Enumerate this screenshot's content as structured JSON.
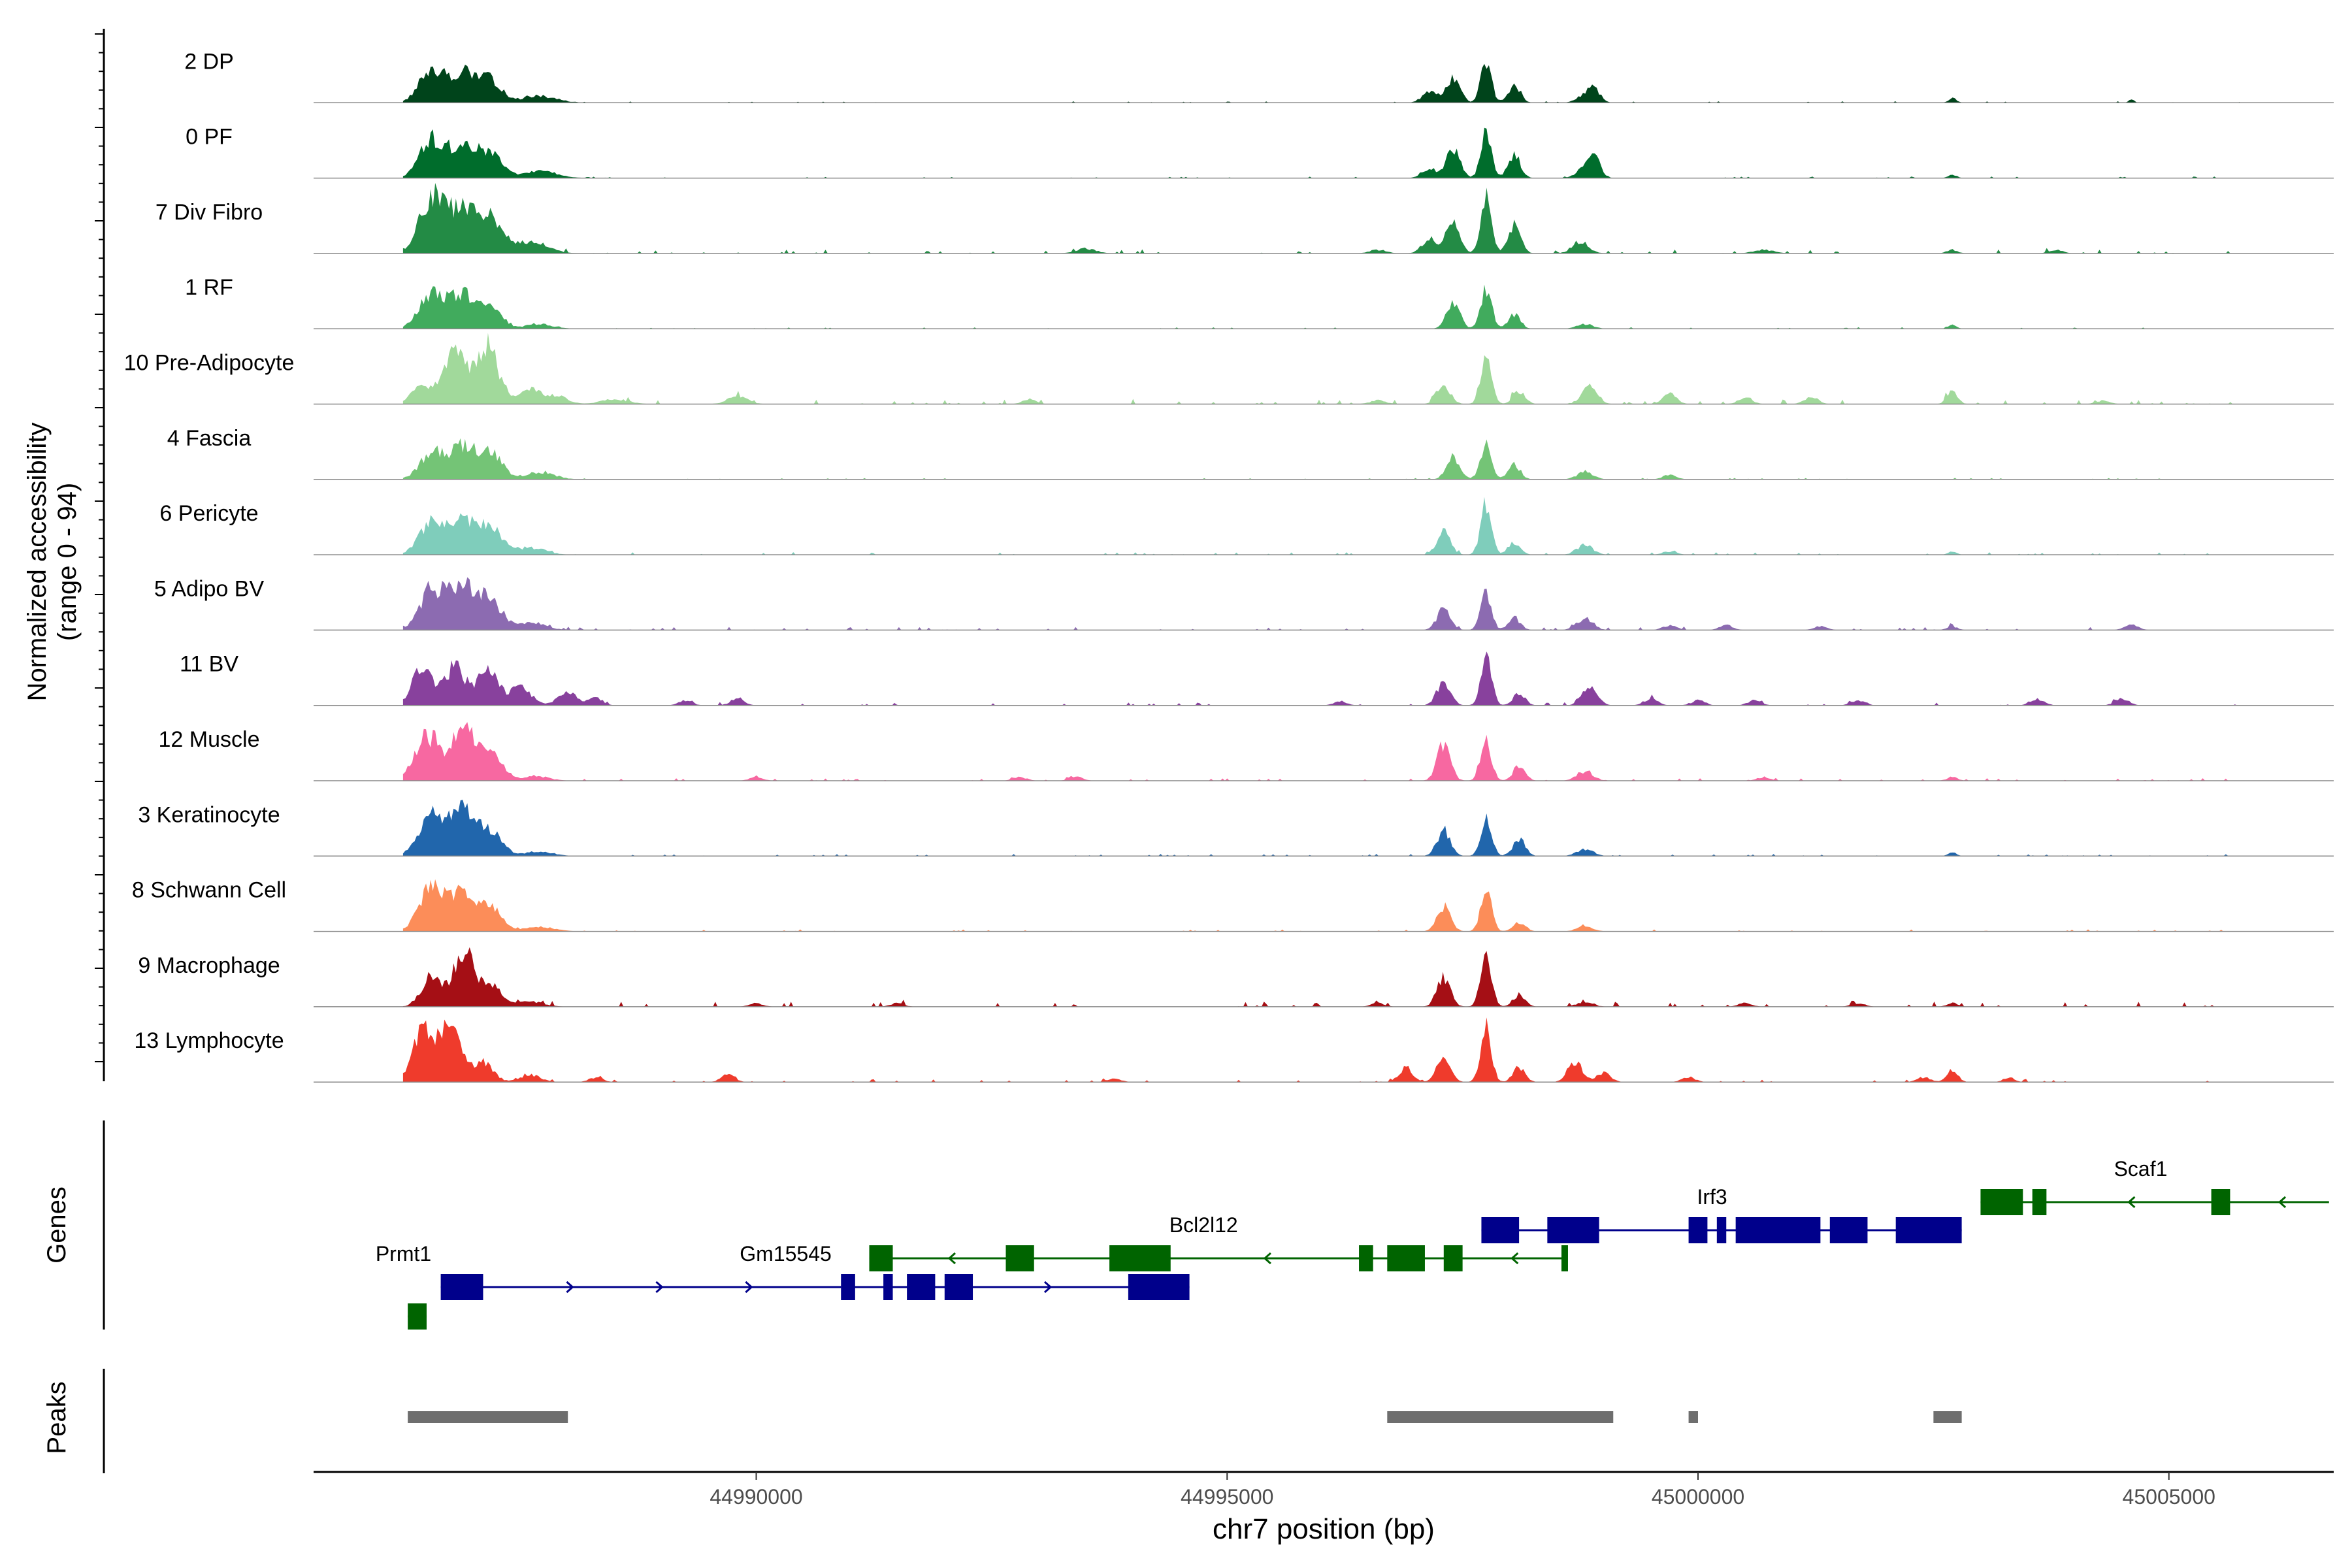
{
  "chart_data": {
    "type": "area",
    "title": "",
    "chromosome": "chr7",
    "xlabel": "chr7 position (bp)",
    "xlim": [
      44985300,
      45006750
    ],
    "x_ticks": [
      44990000,
      44995000,
      45000000,
      45005000
    ],
    "x_tick_labels": [
      "44990000",
      "44995000",
      "45000000",
      "45005000"
    ],
    "ylabel_line1": "Normalized accessibility",
    "ylabel_line2": "(range 0 - 94)",
    "ylim": [
      0,
      94
    ],
    "tracks": [
      {
        "name": "2 DP",
        "color": "#00441b",
        "scale": 0.95,
        "noise": 0.3,
        "peaks": [
          [
            44986550,
            14,
            180
          ],
          [
            44986900,
            13,
            220
          ],
          [
            44987200,
            8,
            160
          ],
          [
            44987700,
            3,
            250
          ],
          [
            44997150,
            5,
            110
          ],
          [
            44997400,
            11,
            100
          ],
          [
            44997750,
            17,
            80
          ],
          [
            44998050,
            8,
            90
          ],
          [
            44998800,
            3,
            120
          ],
          [
            44998900,
            5,
            90
          ],
          [
            45002700,
            2,
            60
          ],
          [
            45004600,
            1.5,
            40
          ]
        ]
      },
      {
        "name": "0 PF",
        "color": "#006d2c",
        "scale": 1.0,
        "noise": 0.3,
        "peaks": [
          [
            44986550,
            15,
            180
          ],
          [
            44986900,
            14,
            220
          ],
          [
            44987200,
            8,
            160
          ],
          [
            44987700,
            3,
            250
          ],
          [
            44997150,
            4,
            110
          ],
          [
            44997400,
            13,
            100
          ],
          [
            44997750,
            18,
            80
          ],
          [
            44998050,
            10,
            90
          ],
          [
            44998800,
            4,
            120
          ],
          [
            44998900,
            7,
            90
          ],
          [
            45002700,
            1.5,
            60
          ]
        ]
      },
      {
        "name": "7 Div Fibro",
        "color": "#238b45",
        "scale": 1.0,
        "noise": 0.8,
        "peaks": [
          [
            44986550,
            22,
            180
          ],
          [
            44986900,
            20,
            220
          ],
          [
            44987200,
            12,
            160
          ],
          [
            44987600,
            5,
            250
          ],
          [
            44993500,
            2,
            150
          ],
          [
            44996600,
            1.5,
            120
          ],
          [
            44997150,
            6,
            110
          ],
          [
            44997400,
            12,
            100
          ],
          [
            44997750,
            22,
            80
          ],
          [
            44998050,
            12,
            90
          ],
          [
            44998750,
            5,
            120
          ],
          [
            45000700,
            1.5,
            150
          ],
          [
            45002700,
            1.5,
            80
          ],
          [
            45003800,
            1.5,
            100
          ]
        ]
      },
      {
        "name": "1 RF",
        "color": "#41ab5d",
        "scale": 1.0,
        "noise": 0.3,
        "peaks": [
          [
            44986550,
            14,
            180
          ],
          [
            44986900,
            14,
            220
          ],
          [
            44987200,
            7,
            160
          ],
          [
            44987700,
            2,
            200
          ],
          [
            44997400,
            11,
            100
          ],
          [
            44997750,
            17,
            80
          ],
          [
            44998050,
            6,
            90
          ],
          [
            44998800,
            2,
            120
          ],
          [
            45002700,
            1.5,
            60
          ]
        ]
      },
      {
        "name": "10 Pre-Adipocyte",
        "color": "#a1d99b",
        "scale": 1.0,
        "noise": 1.0,
        "peaks": [
          [
            44986450,
            8,
            150
          ],
          [
            44986800,
            20,
            180
          ],
          [
            44987150,
            24,
            160
          ],
          [
            44987600,
            6,
            180
          ],
          [
            44987900,
            3,
            150
          ],
          [
            44988500,
            2,
            200
          ],
          [
            44989800,
            3,
            150
          ],
          [
            44992900,
            2,
            100
          ],
          [
            44996600,
            1.5,
            120
          ],
          [
            44997300,
            8,
            100
          ],
          [
            44997750,
            19,
            80
          ],
          [
            44998100,
            5,
            90
          ],
          [
            44998850,
            8,
            110
          ],
          [
            44999700,
            4,
            100
          ],
          [
            45000500,
            3,
            100
          ],
          [
            45001200,
            3,
            100
          ],
          [
            45002700,
            5,
            80
          ],
          [
            45004300,
            1.5,
            100
          ]
        ]
      },
      {
        "name": "4 Fascia",
        "color": "#74c476",
        "scale": 1.0,
        "noise": 0.3,
        "peaks": [
          [
            44986550,
            10,
            180
          ],
          [
            44986900,
            14,
            220
          ],
          [
            44987200,
            9,
            160
          ],
          [
            44987700,
            3,
            220
          ],
          [
            44997400,
            9,
            100
          ],
          [
            44997750,
            15,
            80
          ],
          [
            44998050,
            6,
            90
          ],
          [
            44998800,
            3,
            120
          ],
          [
            44999700,
            2,
            100
          ]
        ]
      },
      {
        "name": "6 Pericyte",
        "color": "#7fcdbb",
        "scale": 1.0,
        "noise": 0.5,
        "peaks": [
          [
            44986550,
            13,
            180
          ],
          [
            44986900,
            14,
            220
          ],
          [
            44987200,
            9,
            160
          ],
          [
            44987600,
            3,
            220
          ],
          [
            44997300,
            10,
            100
          ],
          [
            44997750,
            22,
            80
          ],
          [
            44998050,
            5,
            90
          ],
          [
            44998800,
            4,
            120
          ],
          [
            44999700,
            1.5,
            100
          ],
          [
            45002700,
            1.5,
            60
          ]
        ]
      },
      {
        "name": "5 Adipo BV",
        "color": "#8c6bb1",
        "scale": 1.0,
        "noise": 0.6,
        "peaks": [
          [
            44986550,
            16,
            180
          ],
          [
            44986900,
            18,
            220
          ],
          [
            44987200,
            10,
            160
          ],
          [
            44987600,
            3,
            220
          ],
          [
            44997300,
            9,
            100
          ],
          [
            44997750,
            15,
            80
          ],
          [
            44998050,
            5,
            90
          ],
          [
            44998800,
            5,
            120
          ],
          [
            44999700,
            2,
            100
          ],
          [
            45000300,
            2,
            100
          ],
          [
            45001300,
            1.5,
            100
          ],
          [
            45002700,
            1.5,
            80
          ],
          [
            45004600,
            2.5,
            100
          ]
        ]
      },
      {
        "name": "11 BV",
        "color": "#88419d",
        "scale": 1.0,
        "noise": 0.6,
        "peaks": [
          [
            44986450,
            15,
            150
          ],
          [
            44986800,
            16,
            160
          ],
          [
            44987150,
            16,
            150
          ],
          [
            44987500,
            8,
            150
          ],
          [
            44988000,
            5,
            150
          ],
          [
            44988300,
            3,
            100
          ],
          [
            44989250,
            2,
            100
          ],
          [
            44989800,
            3,
            100
          ],
          [
            44996200,
            1.5,
            100
          ],
          [
            44997300,
            10,
            100
          ],
          [
            44997750,
            20,
            80
          ],
          [
            44998100,
            5,
            90
          ],
          [
            44998850,
            8,
            110
          ],
          [
            44999500,
            3,
            100
          ],
          [
            45000000,
            2,
            100
          ],
          [
            45000600,
            2,
            100
          ],
          [
            45001700,
            2,
            100
          ],
          [
            45003600,
            2.5,
            100
          ],
          [
            45004500,
            3,
            100
          ]
        ]
      },
      {
        "name": "12 Muscle",
        "color": "#f768a1",
        "scale": 1.0,
        "noise": 0.5,
        "peaks": [
          [
            44986500,
            18,
            180
          ],
          [
            44986900,
            22,
            200
          ],
          [
            44987200,
            10,
            150
          ],
          [
            44987650,
            2,
            200
          ],
          [
            44990000,
            1.5,
            100
          ],
          [
            44992800,
            1.5,
            100
          ],
          [
            44993400,
            1.5,
            100
          ],
          [
            44997300,
            14,
            100
          ],
          [
            44997750,
            17,
            80
          ],
          [
            44998100,
            6,
            90
          ],
          [
            44998800,
            4,
            120
          ],
          [
            45000700,
            1.5,
            100
          ],
          [
            45002700,
            1.5,
            80
          ]
        ]
      },
      {
        "name": "3 Keratinocyte",
        "color": "#2166ac",
        "scale": 1.0,
        "noise": 0.4,
        "peaks": [
          [
            44986550,
            16,
            180
          ],
          [
            44986900,
            20,
            200
          ],
          [
            44987200,
            9,
            160
          ],
          [
            44987700,
            2,
            200
          ],
          [
            44997300,
            11,
            100
          ],
          [
            44997750,
            16,
            80
          ],
          [
            44998100,
            7,
            90
          ],
          [
            44998800,
            3,
            120
          ],
          [
            45002700,
            1.5,
            60
          ]
        ]
      },
      {
        "name": "8 Schwann Cell",
        "color": "#fc8d59",
        "scale": 1.0,
        "noise": 0.4,
        "peaks": [
          [
            44986550,
            18,
            180
          ],
          [
            44986900,
            16,
            200
          ],
          [
            44987200,
            8,
            160
          ],
          [
            44987700,
            2,
            220
          ],
          [
            44997300,
            10,
            100
          ],
          [
            44997750,
            18,
            80
          ],
          [
            44998100,
            4,
            90
          ],
          [
            44998800,
            2,
            120
          ]
        ]
      },
      {
        "name": "9 Macrophage",
        "color": "#a50f15",
        "scale": 1.0,
        "noise": 1.0,
        "peaks": [
          [
            44986550,
            12,
            150
          ],
          [
            44986900,
            22,
            170
          ],
          [
            44987200,
            8,
            150
          ],
          [
            44987600,
            2,
            200
          ],
          [
            44990000,
            1.5,
            100
          ],
          [
            44991500,
            1.5,
            100
          ],
          [
            44996600,
            1.5,
            100
          ],
          [
            44997300,
            12,
            100
          ],
          [
            44997750,
            21,
            80
          ],
          [
            44998100,
            5,
            90
          ],
          [
            44998800,
            2,
            120
          ],
          [
            45000500,
            1.5,
            100
          ],
          [
            45001700,
            1.5,
            100
          ],
          [
            45002700,
            1.5,
            80
          ]
        ]
      },
      {
        "name": "13 Lymphocyte",
        "color": "#ef3b2c",
        "scale": 1.0,
        "noise": 0.6,
        "peaks": [
          [
            44986450,
            20,
            150
          ],
          [
            44986750,
            23,
            170
          ],
          [
            44987100,
            8,
            150
          ],
          [
            44987600,
            3,
            150
          ],
          [
            44988300,
            2,
            100
          ],
          [
            44989700,
            3,
            100
          ],
          [
            44993800,
            1.5,
            100
          ],
          [
            44996900,
            6,
            100
          ],
          [
            44997300,
            11,
            100
          ],
          [
            44997750,
            23,
            80
          ],
          [
            44998100,
            6,
            90
          ],
          [
            44998700,
            8,
            110
          ],
          [
            44999000,
            4,
            100
          ],
          [
            44999900,
            2,
            100
          ],
          [
            45002400,
            2,
            100
          ],
          [
            45002700,
            5,
            80
          ],
          [
            45003300,
            2,
            80
          ]
        ]
      }
    ],
    "genes_label": "Genes",
    "genes": [
      {
        "name": "Scaf1",
        "strand": "-",
        "color": "#006400",
        "row": 0,
        "start": 45003000,
        "end": 45006700,
        "exons": [
          [
            45003000,
            45003450
          ],
          [
            45003550,
            45003700
          ],
          [
            45005450,
            45005650
          ]
        ]
      },
      {
        "name": "Irf3",
        "strand": "+",
        "color": "#00008b",
        "row": 1,
        "start": 44997700,
        "end": 45002800,
        "exons": [
          [
            44997700,
            44998100
          ],
          [
            44998400,
            44998950
          ],
          [
            44999900,
            45000100
          ],
          [
            45000200,
            45000300
          ],
          [
            45000400,
            45001300
          ],
          [
            45001400,
            45001800
          ],
          [
            45002100,
            45002800
          ]
        ]
      },
      {
        "name": "Bcl2l12",
        "strand": "-",
        "color": "#006400",
        "row": 2,
        "start": 44991200,
        "end": 44998600,
        "exons": [
          [
            44991200,
            44991450
          ],
          [
            44992650,
            44992950
          ],
          [
            44993750,
            44994400
          ],
          [
            44996400,
            44996550
          ],
          [
            44996700,
            44997100
          ],
          [
            44997300,
            44997500
          ],
          [
            44998550,
            44998600
          ]
        ]
      },
      {
        "name": "Gm15545",
        "strand": "+",
        "color": "#00008b",
        "row": 3,
        "start": 44990900,
        "end": 44994600,
        "exons": [
          [
            44990900,
            44991050
          ],
          [
            44991350,
            44991450
          ],
          [
            44991600,
            44991900
          ],
          [
            44992000,
            44992300
          ],
          [
            44993950,
            44994600
          ]
        ]
      },
      {
        "name": "Prmt1",
        "strand": "+",
        "color": "#00008b",
        "row": 3,
        "start": 44986650,
        "end": 44990900,
        "exons": [
          [
            44986650,
            44987100
          ]
        ]
      },
      {
        "name": "",
        "strand": "-",
        "color": "#006400",
        "row": 4,
        "start": 44986300,
        "end": 44986500,
        "exons": [
          [
            44986300,
            44986500
          ]
        ]
      }
    ],
    "peaks_label": "Peaks",
    "peaks": [
      [
        44986300,
        44988000
      ],
      [
        44996700,
        44999100
      ],
      [
        44999900,
        45000000
      ],
      [
        45002500,
        45002800
      ]
    ]
  }
}
